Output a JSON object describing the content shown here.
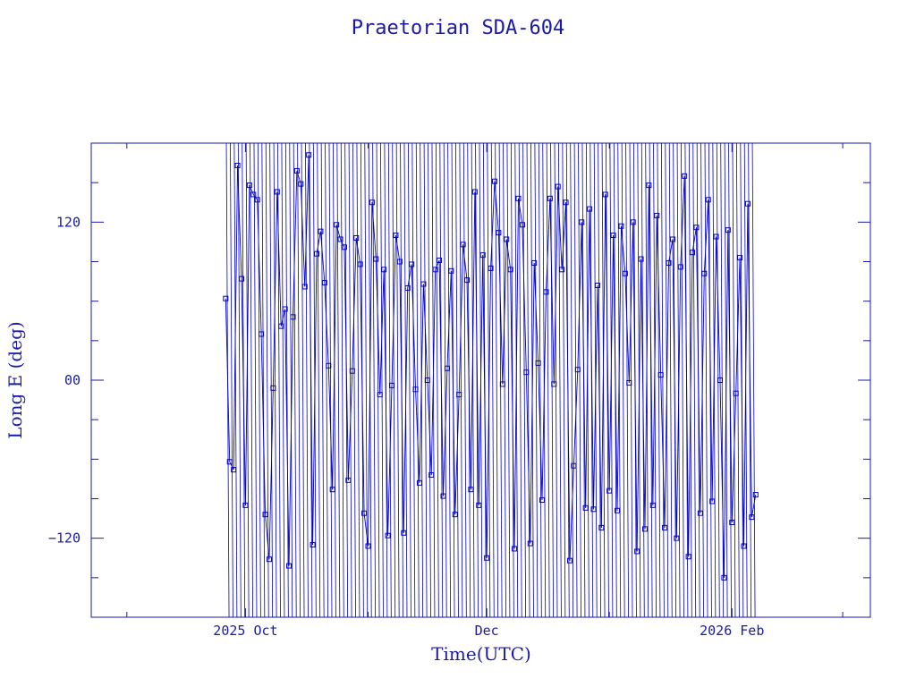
{
  "chart_data": {
    "type": "line",
    "title": "Praetorian SDA-604",
    "xlabel": "Time(UTC)",
    "ylabel": "Long E (deg)",
    "xlim": [
      "2025-08-23",
      "2026-03-08"
    ],
    "ylim": [
      -180,
      180
    ],
    "x_ticks": [
      {
        "value": "2025-10-01",
        "label": "2025 Oct"
      },
      {
        "value": "2025-12-01",
        "label": "Dec"
      },
      {
        "value": "2026-02-01",
        "label": "2026 Feb"
      }
    ],
    "y_ticks": [
      {
        "value": 120,
        "label": "120"
      },
      {
        "value": 0,
        "label": "00"
      },
      {
        "value": -120,
        "label": "−120"
      }
    ],
    "series": [
      {
        "marker": "square",
        "color": "#0000cc",
        "points": [
          [
            "2025-09-26",
            62
          ],
          [
            "2025-09-27",
            -62
          ],
          [
            "2025-09-28",
            -68
          ],
          [
            "2025-09-29",
            163
          ],
          [
            "2025-09-30",
            77
          ],
          [
            "2025-10-01",
            -95
          ],
          [
            "2025-10-02",
            148
          ],
          [
            "2025-10-03",
            141
          ],
          [
            "2025-10-04",
            137
          ],
          [
            "2025-10-05",
            35
          ],
          [
            "2025-10-06",
            -102
          ],
          [
            "2025-10-07",
            -136
          ],
          [
            "2025-10-08",
            -6
          ],
          [
            "2025-10-09",
            143
          ],
          [
            "2025-10-10",
            41
          ],
          [
            "2025-10-11",
            54
          ],
          [
            "2025-10-12",
            -141
          ],
          [
            "2025-10-13",
            48
          ],
          [
            "2025-10-14",
            159
          ],
          [
            "2025-10-15",
            149
          ],
          [
            "2025-10-16",
            71
          ],
          [
            "2025-10-17",
            171
          ],
          [
            "2025-10-18",
            -125
          ],
          [
            "2025-10-19",
            96
          ],
          [
            "2025-10-20",
            113
          ],
          [
            "2025-10-21",
            74
          ],
          [
            "2025-10-22",
            11
          ],
          [
            "2025-10-23",
            -83
          ],
          [
            "2025-10-24",
            118
          ],
          [
            "2025-10-25",
            107
          ],
          [
            "2025-10-26",
            101
          ],
          [
            "2025-10-27",
            -76
          ],
          [
            "2025-10-28",
            7
          ],
          [
            "2025-10-29",
            108
          ],
          [
            "2025-10-30",
            88
          ],
          [
            "2025-10-31",
            -101
          ],
          [
            "2025-11-01",
            -126
          ],
          [
            "2025-11-02",
            135
          ],
          [
            "2025-11-03",
            92
          ],
          [
            "2025-11-04",
            -11
          ],
          [
            "2025-11-05",
            84
          ],
          [
            "2025-11-06",
            -118
          ],
          [
            "2025-11-07",
            -4
          ],
          [
            "2025-11-08",
            110
          ],
          [
            "2025-11-09",
            90
          ],
          [
            "2025-11-10",
            -116
          ],
          [
            "2025-11-11",
            70
          ],
          [
            "2025-11-12",
            88
          ],
          [
            "2025-11-13",
            -7
          ],
          [
            "2025-11-14",
            -78
          ],
          [
            "2025-11-15",
            73
          ],
          [
            "2025-11-16",
            0
          ],
          [
            "2025-11-17",
            -72
          ],
          [
            "2025-11-18",
            84
          ],
          [
            "2025-11-19",
            91
          ],
          [
            "2025-11-20",
            -88
          ],
          [
            "2025-11-21",
            9
          ],
          [
            "2025-11-22",
            83
          ],
          [
            "2025-11-23",
            -102
          ],
          [
            "2025-11-24",
            -11
          ],
          [
            "2025-11-25",
            103
          ],
          [
            "2025-11-26",
            76
          ],
          [
            "2025-11-27",
            -83
          ],
          [
            "2025-11-28",
            143
          ],
          [
            "2025-11-29",
            -95
          ],
          [
            "2025-11-30",
            95
          ],
          [
            "2025-12-01",
            -135
          ],
          [
            "2025-12-02",
            85
          ],
          [
            "2025-12-03",
            151
          ],
          [
            "2025-12-04",
            112
          ],
          [
            "2025-12-05",
            -3
          ],
          [
            "2025-12-06",
            107
          ],
          [
            "2025-12-07",
            84
          ],
          [
            "2025-12-08",
            -128
          ],
          [
            "2025-12-09",
            138
          ],
          [
            "2025-12-10",
            118
          ],
          [
            "2025-12-11",
            6
          ],
          [
            "2025-12-12",
            -124
          ],
          [
            "2025-12-13",
            89
          ],
          [
            "2025-12-14",
            13
          ],
          [
            "2025-12-15",
            -91
          ],
          [
            "2025-12-16",
            67
          ],
          [
            "2025-12-17",
            138
          ],
          [
            "2025-12-18",
            -3
          ],
          [
            "2025-12-19",
            147
          ],
          [
            "2025-12-20",
            84
          ],
          [
            "2025-12-21",
            135
          ],
          [
            "2025-12-22",
            -137
          ],
          [
            "2025-12-23",
            -65
          ],
          [
            "2025-12-24",
            8
          ],
          [
            "2025-12-25",
            120
          ],
          [
            "2025-12-26",
            -97
          ],
          [
            "2025-12-27",
            130
          ],
          [
            "2025-12-28",
            -98
          ],
          [
            "2025-12-29",
            72
          ],
          [
            "2025-12-30",
            -112
          ],
          [
            "2025-12-31",
            141
          ],
          [
            "2026-01-01",
            -84
          ],
          [
            "2026-01-02",
            110
          ],
          [
            "2026-01-03",
            -99
          ],
          [
            "2026-01-04",
            117
          ],
          [
            "2026-01-05",
            81
          ],
          [
            "2026-01-06",
            -2
          ],
          [
            "2026-01-07",
            120
          ],
          [
            "2026-01-08",
            -130
          ],
          [
            "2026-01-09",
            92
          ],
          [
            "2026-01-10",
            -113
          ],
          [
            "2026-01-11",
            148
          ],
          [
            "2026-01-12",
            -95
          ],
          [
            "2026-01-13",
            125
          ],
          [
            "2026-01-14",
            4
          ],
          [
            "2026-01-15",
            -112
          ],
          [
            "2026-01-16",
            89
          ],
          [
            "2026-01-17",
            107
          ],
          [
            "2026-01-18",
            -120
          ],
          [
            "2026-01-19",
            86
          ],
          [
            "2026-01-20",
            155
          ],
          [
            "2026-01-21",
            -134
          ],
          [
            "2026-01-22",
            97
          ],
          [
            "2026-01-23",
            116
          ],
          [
            "2026-01-24",
            -101
          ],
          [
            "2026-01-25",
            81
          ],
          [
            "2026-01-26",
            137
          ],
          [
            "2026-01-27",
            -92
          ],
          [
            "2026-01-28",
            109
          ],
          [
            "2026-01-29",
            0
          ],
          [
            "2026-01-30",
            -150
          ],
          [
            "2026-01-31",
            114
          ],
          [
            "2026-02-01",
            -108
          ],
          [
            "2026-02-02",
            -10
          ],
          [
            "2026-02-03",
            93
          ],
          [
            "2026-02-04",
            -126
          ],
          [
            "2026-02-05",
            134
          ],
          [
            "2026-02-06",
            -104
          ],
          [
            "2026-02-07",
            -87
          ]
        ]
      }
    ]
  }
}
